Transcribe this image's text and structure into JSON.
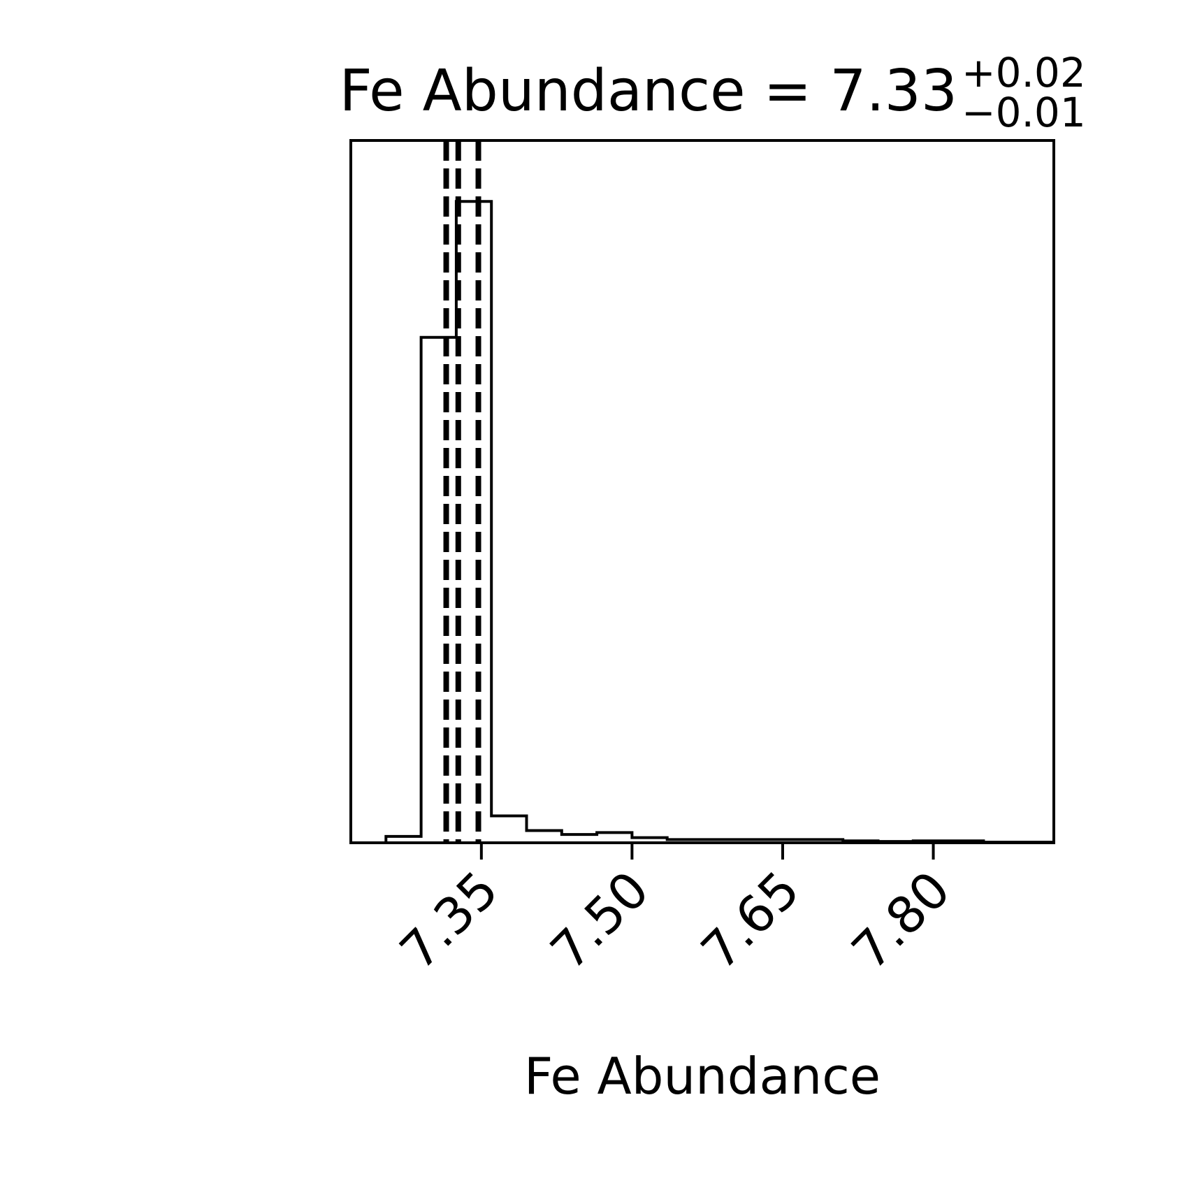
{
  "chart_data": {
    "type": "histogram",
    "title": {
      "prefix": "Fe Abundance = 7.33",
      "upper": "+0.02",
      "lower": "−0.01"
    },
    "xlabel": "Fe Abundance",
    "ylabel": "",
    "xlim": [
      7.22,
      7.92
    ],
    "ylim": [
      0,
      1.095
    ],
    "xticks": [
      7.35,
      7.5,
      7.65,
      7.8
    ],
    "xtick_labels": [
      "7.35",
      "7.50",
      "7.65",
      "7.80"
    ],
    "yticks": [],
    "grid": false,
    "legend": "none",
    "line_color": "#000000",
    "bins": [
      7.22,
      7.255,
      7.29,
      7.325,
      7.36,
      7.395,
      7.43,
      7.465,
      7.5,
      7.535,
      7.57,
      7.605,
      7.64,
      7.675,
      7.71,
      7.745,
      7.78,
      7.815,
      7.85,
      7.885,
      7.92
    ],
    "counts": [
      0,
      0.01,
      0.788,
      1.0,
      0.042,
      0.019,
      0.013,
      0.016,
      0.008,
      0.005,
      0.005,
      0.005,
      0.005,
      0.005,
      0.003,
      0.002,
      0.003,
      0.003,
      0.001,
      0.001
    ],
    "quantile_lines": [
      7.315,
      7.327,
      7.347
    ]
  }
}
